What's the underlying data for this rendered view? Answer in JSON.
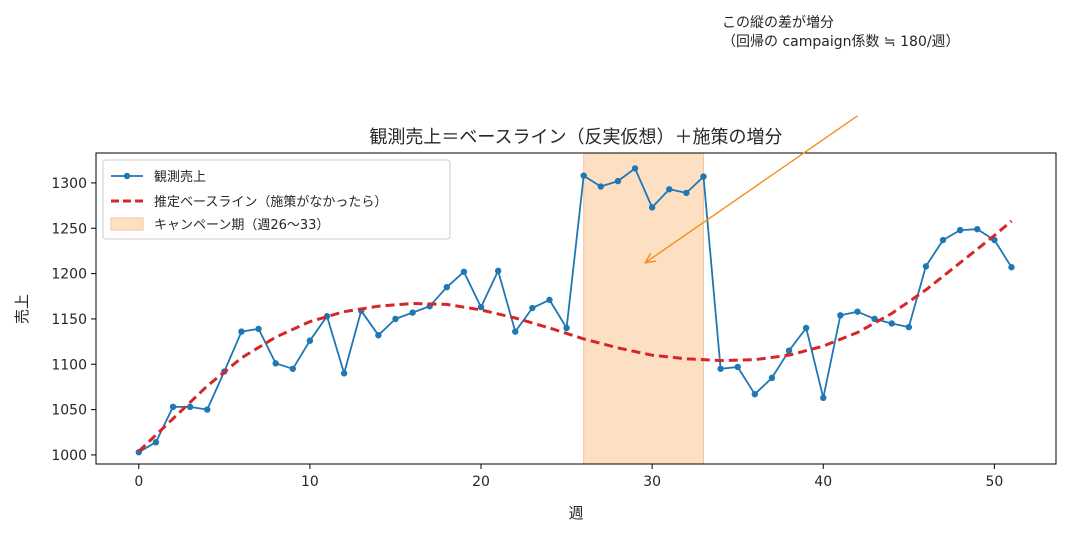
{
  "chart_data": {
    "type": "line",
    "title": "観測売上＝ベースライン（反実仮想）＋施策の増分",
    "xlabel": "週",
    "ylabel": "売上",
    "xlim": [
      -2.5,
      53.6
    ],
    "ylim": [
      990,
      1333
    ],
    "xticks": [
      0,
      10,
      20,
      30,
      40,
      50
    ],
    "yticks": [
      1000,
      1050,
      1100,
      1150,
      1200,
      1250,
      1300
    ],
    "grid": false,
    "legend_position": "top-left",
    "colors": {
      "observed": "#1f77b4",
      "baseline": "#d62728",
      "campaign_fill": "#fdd8b5",
      "annotation": "#f28e1c",
      "axis": "#000000"
    },
    "campaign_period": {
      "label": "キャンペーン期（週26〜33）",
      "start": 26,
      "end": 33
    },
    "series": [
      {
        "name": "観測売上",
        "style": "line-marker",
        "x": [
          0,
          1,
          2,
          3,
          4,
          5,
          6,
          7,
          8,
          9,
          10,
          11,
          12,
          13,
          14,
          15,
          16,
          17,
          18,
          19,
          20,
          21,
          22,
          23,
          24,
          25,
          26,
          27,
          28,
          29,
          30,
          31,
          32,
          33,
          34,
          35,
          36,
          37,
          38,
          39,
          40,
          41,
          42,
          43,
          44,
          45,
          46,
          47,
          48,
          49,
          50,
          51
        ],
        "values": [
          1003,
          1014,
          1053,
          1053,
          1050,
          1092,
          1136,
          1139,
          1101,
          1095,
          1126,
          1153,
          1090,
          1159,
          1132,
          1150,
          1157,
          1164,
          1185,
          1202,
          1163,
          1203,
          1136,
          1162,
          1171,
          1140,
          1308,
          1296,
          1302,
          1316,
          1273,
          1293,
          1289,
          1307,
          1095,
          1097,
          1067,
          1085,
          1115,
          1140,
          1063,
          1154,
          1158,
          1150,
          1145,
          1141,
          1208,
          1237,
          1248,
          1249,
          1237,
          1207
        ]
      },
      {
        "name": "推定ベースライン（施策がなかったら）",
        "style": "dashed",
        "x": [
          0,
          2,
          4,
          6,
          8,
          10,
          12,
          14,
          16,
          18,
          20,
          22,
          24,
          26,
          28,
          30,
          32,
          34,
          36,
          38,
          40,
          42,
          44,
          46,
          48,
          50,
          51
        ],
        "values": [
          1004,
          1040,
          1076,
          1107,
          1130,
          1147,
          1158,
          1164,
          1167,
          1166,
          1160,
          1151,
          1140,
          1128,
          1118,
          1110,
          1106,
          1104,
          1105,
          1110,
          1120,
          1135,
          1156,
          1182,
          1212,
          1242,
          1258
        ]
      }
    ],
    "annotation": {
      "text_line1": "この縦の差が増分",
      "text_line2": "（回帰の campaign係数 ≒ 180/週）",
      "arrow_from": [
        42,
        1374
      ],
      "arrow_to": [
        29.6,
        1212
      ]
    }
  }
}
